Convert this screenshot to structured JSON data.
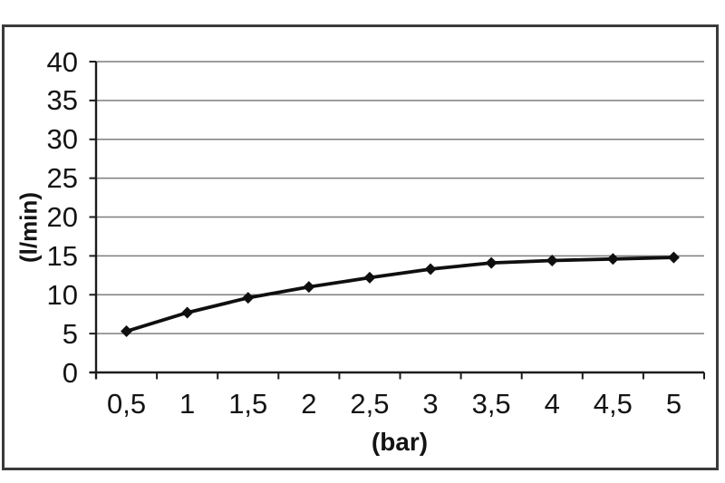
{
  "chart_data": {
    "type": "line",
    "title": "",
    "xlabel": "(bar)",
    "ylabel": "(l/min)",
    "categories": [
      "0,5",
      "1",
      "1,5",
      "2",
      "2,5",
      "3",
      "3,5",
      "4",
      "4,5",
      "5"
    ],
    "x_numeric": [
      0.5,
      1,
      1.5,
      2,
      2.5,
      3,
      3.5,
      4,
      4.5,
      5
    ],
    "series": [
      {
        "values": [
          5.3,
          7.7,
          9.6,
          11.0,
          12.2,
          13.3,
          14.1,
          14.4,
          14.6,
          14.8
        ],
        "color": "#0f0f0f",
        "marker": "diamond"
      }
    ],
    "ylim": [
      0,
      40
    ],
    "y_ticks": [
      0,
      5,
      10,
      15,
      20,
      25,
      30,
      35,
      40
    ],
    "y_tick_labels": [
      "0",
      "5",
      "10",
      "15",
      "20",
      "25",
      "30",
      "35",
      "40"
    ],
    "grid": "horizontal",
    "legend": "none",
    "colors": {
      "gridline": "#7d7d7d",
      "axis": "#1c1c1c",
      "text": "#141414",
      "frame_border": "#3a3a3a",
      "background": "#ffffff"
    }
  }
}
